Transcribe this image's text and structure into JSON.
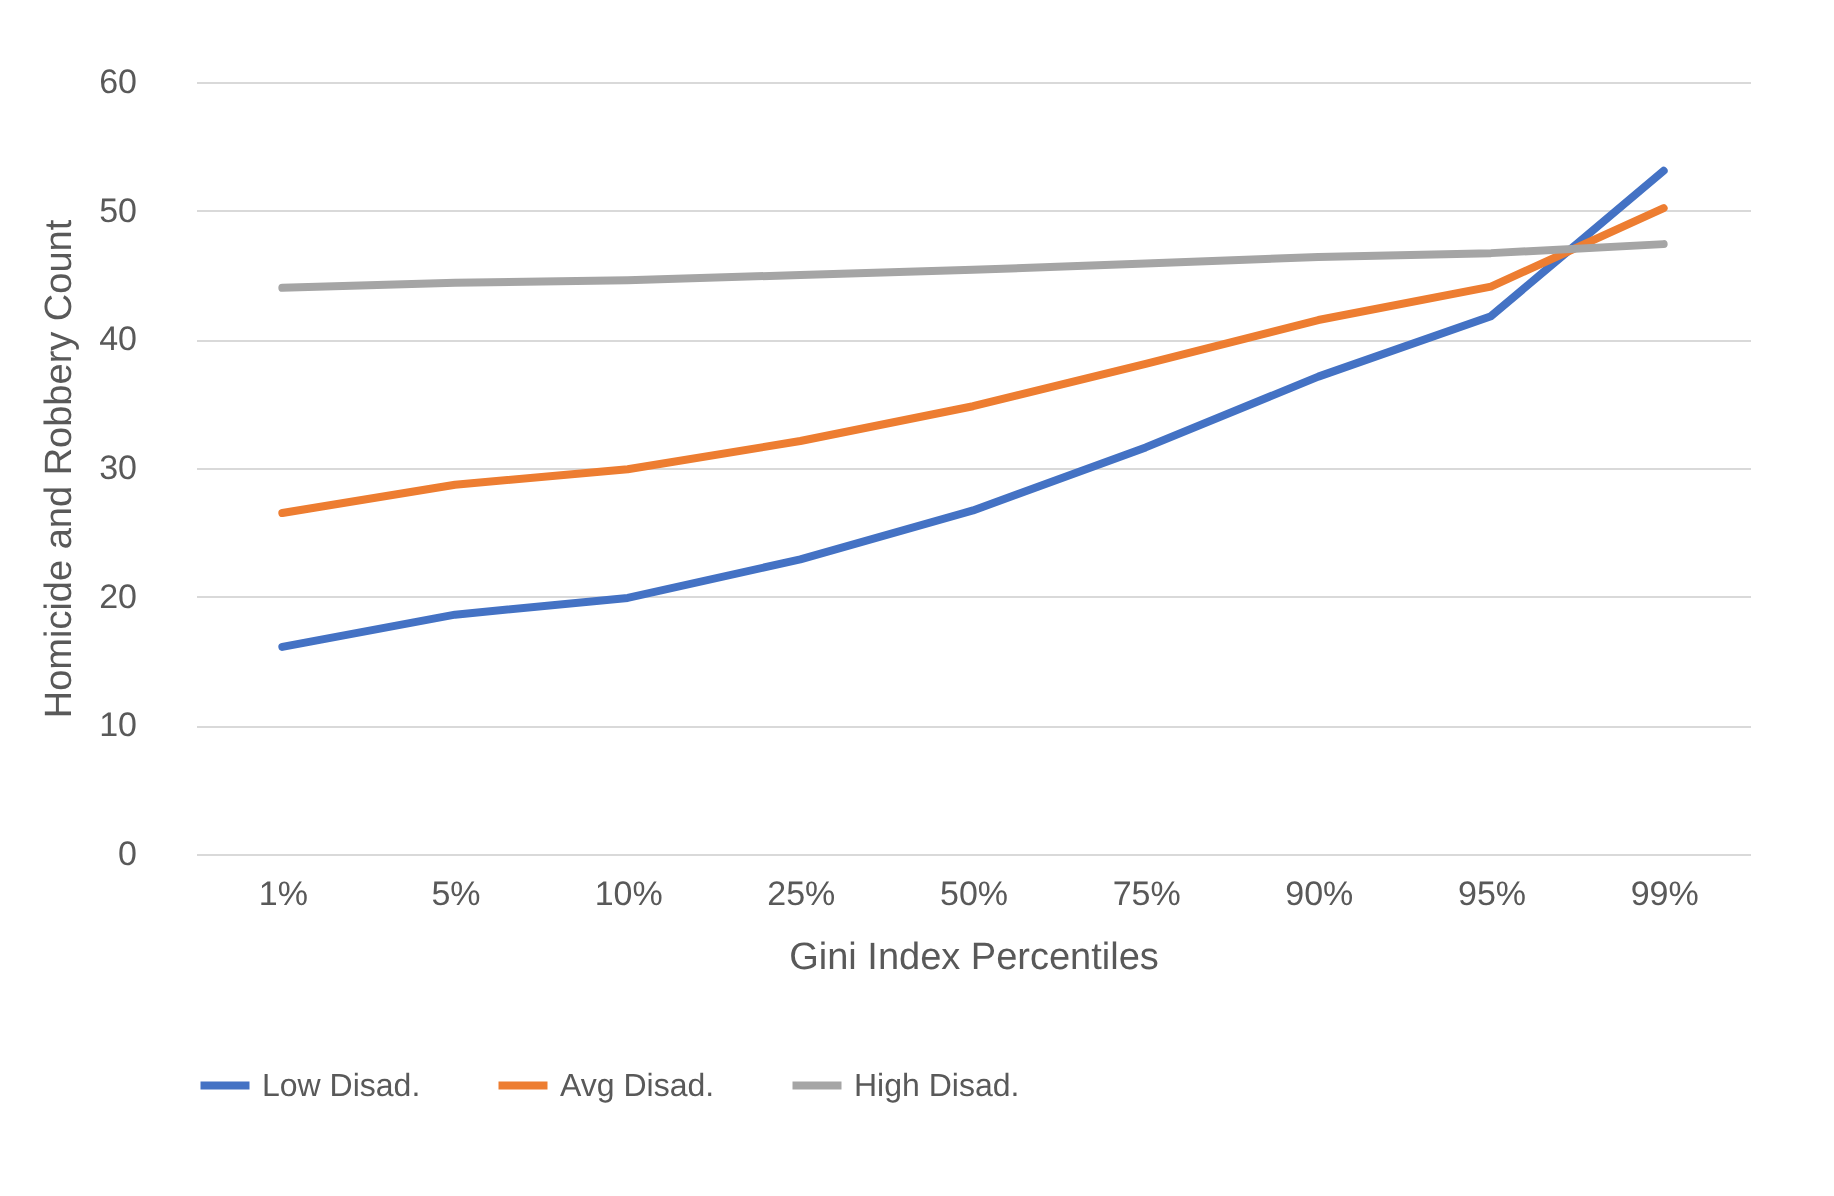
{
  "chart_data": {
    "type": "line",
    "xlabel": "Gini Index Percentiles",
    "ylabel": "Homicide and Robbery Count",
    "categories": [
      "1%",
      "5%",
      "10%",
      "25%",
      "50%",
      "75%",
      "90%",
      "95%",
      "99%"
    ],
    "series": [
      {
        "name": "Low Disad.",
        "color": "#4472c4",
        "values": [
          16.1,
          18.6,
          19.9,
          22.9,
          26.7,
          31.6,
          37.1,
          41.8,
          53.1
        ]
      },
      {
        "name": "Avg Disad.",
        "color": "#ed7d31",
        "values": [
          26.5,
          28.7,
          29.9,
          32.1,
          34.8,
          38.1,
          41.5,
          44.1,
          50.2
        ]
      },
      {
        "name": "High Disad.",
        "color": "#a5a5a5",
        "values": [
          44,
          44.4,
          44.6,
          45,
          45.4,
          45.9,
          46.4,
          46.7,
          47.4
        ]
      }
    ],
    "ylim": [
      0,
      60
    ],
    "yticks": [
      0,
      10,
      20,
      30,
      40,
      50,
      60
    ],
    "grid": "y",
    "legend": "bottom",
    "marker": "none",
    "line_style": "solid"
  }
}
